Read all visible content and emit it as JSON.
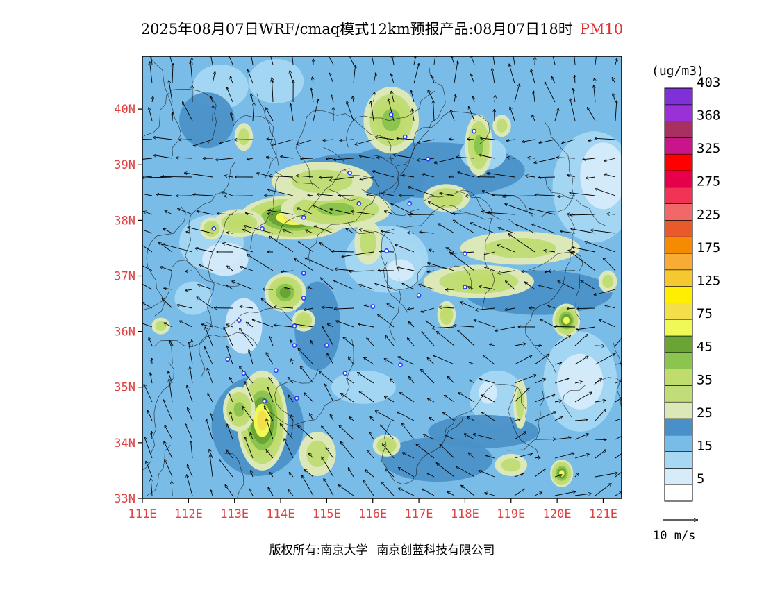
{
  "title": {
    "text": "2025年08月07日WRF/cmaq模式12km预报产品:08月07日18时",
    "pollutant": "PM10"
  },
  "axes": {
    "lat_labels": [
      "33N",
      "34N",
      "35N",
      "36N",
      "37N",
      "38N",
      "39N",
      "40N"
    ],
    "lat_values": [
      33,
      34,
      35,
      36,
      37,
      38,
      39,
      40
    ],
    "lon_labels": [
      "111E",
      "112E",
      "113E",
      "114E",
      "115E",
      "116E",
      "117E",
      "118E",
      "119E",
      "120E",
      "121E"
    ],
    "lon_values": [
      111,
      112,
      113,
      114,
      115,
      116,
      117,
      118,
      119,
      120,
      121
    ],
    "lat_range": [
      33,
      40.95
    ],
    "lon_range": [
      111,
      121.4
    ]
  },
  "legend": {
    "unit": "(ug/m3)",
    "levels": [
      {
        "label": "5",
        "color": "#ffffff"
      },
      {
        "label": "",
        "color": "#d6ecfb"
      },
      {
        "label": "15",
        "color": "#a6d8f3"
      },
      {
        "label": "",
        "color": "#79bce8"
      },
      {
        "label": "25",
        "color": "#4a90c8"
      },
      {
        "label": "",
        "color": "#dde8b8"
      },
      {
        "label": "35",
        "color": "#c0dd78"
      },
      {
        "label": "",
        "color": "#bfdc6d"
      },
      {
        "label": "45",
        "color": "#8cc450"
      },
      {
        "label": "",
        "color": "#6aa434"
      },
      {
        "label": "75",
        "color": "#f0f858"
      },
      {
        "label": "",
        "color": "#f2df4a"
      },
      {
        "label": "125",
        "color": "#ffee00"
      },
      {
        "label": "",
        "color": "#f6c830"
      },
      {
        "label": "175",
        "color": "#f7ac35"
      },
      {
        "label": "",
        "color": "#f58b00"
      },
      {
        "label": "225",
        "color": "#e85a2a"
      },
      {
        "label": "",
        "color": "#f26868"
      },
      {
        "label": "275",
        "color": "#f23355"
      },
      {
        "label": "",
        "color": "#e6004c"
      },
      {
        "label": "325",
        "color": "#ff0000"
      },
      {
        "label": "",
        "color": "#c8158a"
      },
      {
        "label": "368",
        "color": "#a83060"
      },
      {
        "label": "",
        "color": "#9a30d8"
      },
      {
        "label": "403",
        "color": "#7f30d8"
      }
    ]
  },
  "wind_reference": {
    "label": "10 m/s"
  },
  "footer": {
    "left": "版权所有:南京大学",
    "right": "南京创蓝科技有限公司"
  },
  "stations": [
    [
      116.4,
      39.9
    ],
    [
      116.7,
      39.5
    ],
    [
      117.2,
      39.1
    ],
    [
      118.2,
      39.6
    ],
    [
      115.5,
      38.85
    ],
    [
      114.5,
      38.05
    ],
    [
      113.6,
      37.85
    ],
    [
      112.55,
      37.85
    ],
    [
      115.7,
      38.3
    ],
    [
      116.8,
      38.3
    ],
    [
      116.3,
      37.45
    ],
    [
      118.0,
      37.4
    ],
    [
      117.0,
      36.65
    ],
    [
      118.0,
      36.8
    ],
    [
      114.5,
      37.05
    ],
    [
      114.5,
      36.6
    ],
    [
      116.0,
      36.45
    ],
    [
      113.1,
      36.2
    ],
    [
      114.3,
      36.1
    ],
    [
      114.3,
      35.75
    ],
    [
      115.0,
      35.75
    ],
    [
      112.85,
      35.5
    ],
    [
      113.9,
      35.3
    ],
    [
      113.2,
      35.25
    ],
    [
      115.4,
      35.25
    ],
    [
      116.6,
      35.4
    ],
    [
      114.35,
      34.8
    ],
    [
      113.65,
      34.75
    ]
  ],
  "hotspots": [
    {
      "lon": 114.3,
      "lat": 38.05,
      "rx": 1.2,
      "ry": 0.4,
      "level": 11
    },
    {
      "lon": 115.2,
      "lat": 38.2,
      "rx": 1.2,
      "ry": 0.35,
      "level": 8
    },
    {
      "lon": 114.9,
      "lat": 38.7,
      "rx": 1.1,
      "ry": 0.35,
      "level": 6
    },
    {
      "lon": 116.4,
      "lat": 39.8,
      "rx": 0.6,
      "ry": 0.6,
      "level": 8
    },
    {
      "lon": 118.3,
      "lat": 39.35,
      "rx": 0.3,
      "ry": 0.55,
      "level": 8
    },
    {
      "lon": 117.6,
      "lat": 38.4,
      "rx": 0.5,
      "ry": 0.25,
      "level": 7
    },
    {
      "lon": 113.1,
      "lat": 37.95,
      "rx": 0.55,
      "ry": 0.25,
      "level": 7
    },
    {
      "lon": 112.5,
      "lat": 37.85,
      "rx": 0.25,
      "ry": 0.2,
      "level": 7
    },
    {
      "lon": 114.1,
      "lat": 36.7,
      "rx": 0.45,
      "ry": 0.35,
      "level": 9
    },
    {
      "lon": 114.5,
      "lat": 36.2,
      "rx": 0.25,
      "ry": 0.2,
      "level": 7
    },
    {
      "lon": 118.3,
      "lat": 36.9,
      "rx": 1.2,
      "ry": 0.3,
      "level": 7
    },
    {
      "lon": 119.2,
      "lat": 37.5,
      "rx": 1.3,
      "ry": 0.3,
      "level": 6
    },
    {
      "lon": 120.2,
      "lat": 36.2,
      "rx": 0.3,
      "ry": 0.3,
      "level": 10
    },
    {
      "lon": 117.6,
      "lat": 36.3,
      "rx": 0.2,
      "ry": 0.25,
      "level": 7
    },
    {
      "lon": 113.6,
      "lat": 34.4,
      "rx": 0.55,
      "ry": 0.9,
      "level": 11
    },
    {
      "lon": 113.1,
      "lat": 34.6,
      "rx": 0.35,
      "ry": 0.4,
      "level": 8
    },
    {
      "lon": 114.8,
      "lat": 33.8,
      "rx": 0.4,
      "ry": 0.4,
      "level": 6
    },
    {
      "lon": 116.3,
      "lat": 33.95,
      "rx": 0.3,
      "ry": 0.2,
      "level": 7
    },
    {
      "lon": 120.1,
      "lat": 33.45,
      "rx": 0.25,
      "ry": 0.25,
      "level": 10
    },
    {
      "lon": 119.0,
      "lat": 33.6,
      "rx": 0.35,
      "ry": 0.2,
      "level": 6
    },
    {
      "lon": 121.1,
      "lat": 36.9,
      "rx": 0.2,
      "ry": 0.2,
      "level": 6
    },
    {
      "lon": 119.2,
      "lat": 34.7,
      "rx": 0.15,
      "ry": 0.45,
      "level": 6
    },
    {
      "lon": 113.2,
      "lat": 39.5,
      "rx": 0.2,
      "ry": 0.25,
      "level": 6
    },
    {
      "lon": 118.8,
      "lat": 39.7,
      "rx": 0.2,
      "ry": 0.2,
      "level": 6
    },
    {
      "lon": 111.4,
      "lat": 36.1,
      "rx": 0.2,
      "ry": 0.15,
      "level": 6
    },
    {
      "lon": 115.9,
      "lat": 37.6,
      "rx": 0.3,
      "ry": 0.4,
      "level": 6
    }
  ]
}
